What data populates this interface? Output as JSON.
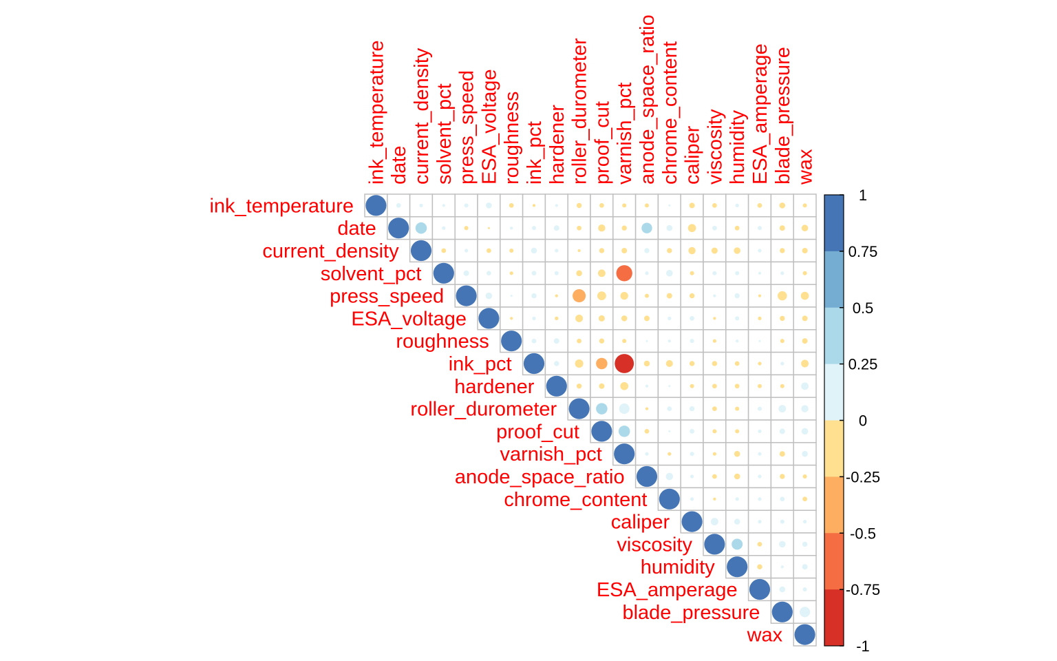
{
  "chart_data": {
    "type": "heatmap",
    "variables": [
      "ink_temperature",
      "date",
      "current_density",
      "solvent_pct",
      "press_speed",
      "ESA_voltage",
      "roughness",
      "ink_pct",
      "hardener",
      "roller_durometer",
      "proof_cut",
      "varnish_pct",
      "anode_space_ratio",
      "chrome_content",
      "caliper",
      "viscosity",
      "humidity",
      "ESA_amperage",
      "blade_pressure",
      "wax"
    ],
    "matrix": [
      [
        1,
        0.05,
        0.03,
        0.02,
        0.04,
        0.08,
        -0.05,
        -0.02,
        0.02,
        -0.06,
        -0.05,
        -0.04,
        -0.04,
        0.01,
        -0.07,
        -0.05,
        0.03,
        -0.05,
        -0.08,
        -0.04
      ],
      [
        null,
        1,
        0.3,
        0.03,
        -0.04,
        -0.01,
        0.02,
        0.04,
        0.07,
        -0.05,
        -0.12,
        -0.06,
        0.26,
        0.08,
        -0.15,
        0.05,
        -0.05,
        0.04,
        -0.07,
        -0.1
      ],
      [
        null,
        null,
        1,
        -0.05,
        0.03,
        -0.05,
        -0.04,
        0.08,
        0.03,
        -0.02,
        -0.06,
        -0.07,
        0.06,
        -0.06,
        -0.12,
        -0.09,
        -0.1,
        0.03,
        -0.06,
        -0.07
      ],
      [
        null,
        null,
        null,
        1,
        0.07,
        0.05,
        -0.03,
        0.05,
        0.04,
        -0.08,
        -0.13,
        -0.6,
        0.03,
        0.1,
        -0.04,
        0.04,
        0.04,
        0.02,
        0.03,
        -0.04
      ],
      [
        null,
        null,
        null,
        null,
        1,
        0.1,
        0.01,
        0.06,
        -0.02,
        -0.4,
        -0.18,
        -0.14,
        -0.04,
        -0.07,
        -0.06,
        0.02,
        0.06,
        -0.02,
        -0.2,
        -0.15
      ],
      [
        null,
        null,
        null,
        null,
        null,
        1,
        -0.02,
        0.03,
        -0.03,
        -0.13,
        -0.09,
        -0.08,
        -0.07,
        0.03,
        0.05,
        -0.02,
        0.04,
        -0.03,
        -0.06,
        -0.07
      ],
      [
        null,
        null,
        null,
        null,
        null,
        null,
        1,
        0.05,
        0.07,
        -0.05,
        -0.06,
        -0.04,
        0.01,
        0.02,
        0.04,
        -0.03,
        0.02,
        0.01,
        -0.04,
        -0.07
      ],
      [
        null,
        null,
        null,
        null,
        null,
        null,
        null,
        1,
        0.06,
        -0.16,
        -0.3,
        -0.85,
        -0.08,
        -0.11,
        -0.06,
        -0.06,
        -0.05,
        -0.03,
        0.03,
        -0.13
      ],
      [
        null,
        null,
        null,
        null,
        null,
        null,
        null,
        null,
        1,
        -0.06,
        -0.07,
        -0.15,
        0.02,
        0.01,
        -0.04,
        -0.05,
        -0.05,
        -0.04,
        -0.04,
        0.13
      ],
      [
        null,
        null,
        null,
        null,
        null,
        null,
        null,
        null,
        null,
        1,
        0.3,
        0.25,
        -0.02,
        0.05,
        0.06,
        -0.05,
        -0.04,
        0.04,
        0.13,
        0.12
      ],
      [
        null,
        null,
        null,
        null,
        null,
        null,
        null,
        null,
        null,
        null,
        1,
        0.3,
        -0.05,
        0.01,
        0.05,
        -0.04,
        -0.04,
        0.03,
        0.07,
        0.1
      ],
      [
        null,
        null,
        null,
        null,
        null,
        null,
        null,
        null,
        null,
        null,
        null,
        1,
        0.03,
        -0.03,
        0.04,
        -0.03,
        -0.08,
        0.03,
        -0.07,
        0.08
      ],
      [
        null,
        null,
        null,
        null,
        null,
        null,
        null,
        null,
        null,
        null,
        null,
        null,
        1,
        0.12,
        0.03,
        -0.05,
        -0.08,
        0.03,
        -0.06,
        -0.04
      ],
      [
        null,
        null,
        null,
        null,
        null,
        null,
        null,
        null,
        null,
        null,
        null,
        null,
        null,
        1,
        0.03,
        -0.02,
        0.03,
        0.03,
        0.05,
        -0.05
      ],
      [
        null,
        null,
        null,
        null,
        null,
        null,
        null,
        null,
        null,
        null,
        null,
        null,
        null,
        null,
        1,
        0.13,
        0.08,
        0.03,
        0.04,
        0.03
      ],
      [
        null,
        null,
        null,
        null,
        null,
        null,
        null,
        null,
        null,
        null,
        null,
        null,
        null,
        null,
        null,
        1,
        0.28,
        -0.05,
        0.1,
        0.06
      ],
      [
        null,
        null,
        null,
        null,
        null,
        null,
        null,
        null,
        null,
        null,
        null,
        null,
        null,
        null,
        null,
        null,
        1,
        -0.06,
        0.02,
        0.07
      ],
      [
        null,
        null,
        null,
        null,
        null,
        null,
        null,
        null,
        null,
        null,
        null,
        null,
        null,
        null,
        null,
        null,
        null,
        1,
        0.08,
        0.04
      ],
      [
        null,
        null,
        null,
        null,
        null,
        null,
        null,
        null,
        null,
        null,
        null,
        null,
        null,
        null,
        null,
        null,
        null,
        null,
        1,
        0.25
      ],
      [
        null,
        null,
        null,
        null,
        null,
        null,
        null,
        null,
        null,
        null,
        null,
        null,
        null,
        null,
        null,
        null,
        null,
        null,
        null,
        1
      ]
    ],
    "colorbar": {
      "ticks": [
        "1",
        "0.75",
        "0.5",
        "0.25",
        "0",
        "-0.25",
        "-0.5",
        "-0.75",
        "-1"
      ],
      "range": [
        -1,
        1
      ],
      "colors_top_to_bottom": [
        "#4575b4",
        "#74add1",
        "#abd9e9",
        "#e0f3f8",
        "#fee090",
        "#fdae61",
        "#f46d43",
        "#d73027"
      ]
    },
    "label_color": "#ff0000",
    "grid_color": "#bfbfbf",
    "layout": "upper-triangle",
    "marker": "circle"
  }
}
